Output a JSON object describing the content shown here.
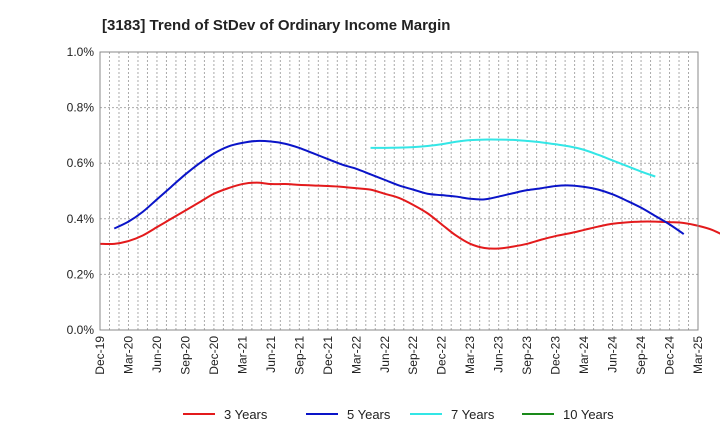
{
  "chart_data": {
    "type": "line",
    "title": "[3183]  Trend of StDev of Ordinary Income Margin",
    "xlabel": "",
    "ylabel": "",
    "ylim": [
      0,
      1.0
    ],
    "y_ticks": [
      "0.0%",
      "0.2%",
      "0.4%",
      "0.6%",
      "0.8%",
      "1.0%"
    ],
    "y_tick_values": [
      0,
      0.2,
      0.4,
      0.6,
      0.8,
      1.0
    ],
    "x_ticks": [
      "Dec-19",
      "Mar-20",
      "Jun-20",
      "Sep-20",
      "Dec-20",
      "Mar-21",
      "Jun-21",
      "Sep-21",
      "Dec-21",
      "Mar-22",
      "Jun-22",
      "Sep-22",
      "Dec-22",
      "Mar-23",
      "Jun-23",
      "Sep-23",
      "Dec-23",
      "Mar-24",
      "Jun-24",
      "Sep-24",
      "Dec-24",
      "Mar-25"
    ],
    "grid": true,
    "legend_position": "bottom",
    "colors": {
      "3 Years": "#e31a1c",
      "5 Years": "#0a14c8",
      "7 Years": "#33e6e6",
      "10 Years": "#1a8a1a"
    },
    "series": [
      {
        "name": "3 Years",
        "values": [
          [
            0,
            0.31
          ],
          [
            1,
            0.31
          ],
          [
            2,
            0.32
          ],
          [
            3,
            0.34
          ],
          [
            4,
            0.37
          ],
          [
            5,
            0.4
          ],
          [
            6,
            0.43
          ],
          [
            7,
            0.46
          ],
          [
            8,
            0.49
          ],
          [
            9,
            0.51
          ],
          [
            10,
            0.525
          ],
          [
            11,
            0.53
          ],
          [
            12,
            0.525
          ],
          [
            13,
            0.525
          ],
          [
            14,
            0.522
          ],
          [
            15,
            0.52
          ],
          [
            16,
            0.518
          ],
          [
            17,
            0.515
          ],
          [
            18,
            0.51
          ],
          [
            19,
            0.505
          ],
          [
            20,
            0.49
          ],
          [
            21,
            0.475
          ],
          [
            22,
            0.45
          ],
          [
            23,
            0.42
          ],
          [
            24,
            0.38
          ],
          [
            25,
            0.34
          ],
          [
            26,
            0.31
          ],
          [
            27,
            0.295
          ],
          [
            28,
            0.293
          ],
          [
            29,
            0.3
          ],
          [
            30,
            0.31
          ],
          [
            31,
            0.325
          ],
          [
            32,
            0.338
          ],
          [
            33,
            0.348
          ],
          [
            34,
            0.36
          ],
          [
            35,
            0.372
          ],
          [
            36,
            0.382
          ],
          [
            37,
            0.387
          ],
          [
            38,
            0.39
          ],
          [
            39,
            0.39
          ],
          [
            40,
            0.388
          ],
          [
            41,
            0.385
          ],
          [
            42,
            0.375
          ],
          [
            43,
            0.36
          ],
          [
            44,
            0.335
          ]
        ]
      },
      {
        "name": "5 Years",
        "values": [
          [
            1,
            0.365
          ],
          [
            2,
            0.39
          ],
          [
            3,
            0.425
          ],
          [
            4,
            0.47
          ],
          [
            5,
            0.515
          ],
          [
            6,
            0.56
          ],
          [
            7,
            0.6
          ],
          [
            8,
            0.635
          ],
          [
            9,
            0.66
          ],
          [
            10,
            0.673
          ],
          [
            11,
            0.68
          ],
          [
            12,
            0.678
          ],
          [
            13,
            0.67
          ],
          [
            14,
            0.655
          ],
          [
            15,
            0.635
          ],
          [
            16,
            0.615
          ],
          [
            17,
            0.595
          ],
          [
            18,
            0.58
          ],
          [
            19,
            0.56
          ],
          [
            20,
            0.54
          ],
          [
            21,
            0.52
          ],
          [
            22,
            0.505
          ],
          [
            23,
            0.49
          ],
          [
            24,
            0.485
          ],
          [
            25,
            0.48
          ],
          [
            26,
            0.472
          ],
          [
            27,
            0.47
          ],
          [
            28,
            0.48
          ],
          [
            29,
            0.492
          ],
          [
            30,
            0.503
          ],
          [
            31,
            0.51
          ],
          [
            32,
            0.518
          ],
          [
            33,
            0.52
          ],
          [
            34,
            0.515
          ],
          [
            35,
            0.505
          ],
          [
            36,
            0.488
          ],
          [
            37,
            0.465
          ],
          [
            38,
            0.44
          ],
          [
            39,
            0.41
          ],
          [
            40,
            0.38
          ],
          [
            41,
            0.345
          ]
        ]
      },
      {
        "name": "7 Years",
        "values": [
          [
            19,
            0.655
          ],
          [
            20,
            0.655
          ],
          [
            21,
            0.656
          ],
          [
            22,
            0.658
          ],
          [
            23,
            0.662
          ],
          [
            24,
            0.668
          ],
          [
            25,
            0.677
          ],
          [
            26,
            0.683
          ],
          [
            27,
            0.685
          ],
          [
            28,
            0.685
          ],
          [
            29,
            0.684
          ],
          [
            30,
            0.68
          ],
          [
            31,
            0.675
          ],
          [
            32,
            0.668
          ],
          [
            33,
            0.66
          ],
          [
            34,
            0.648
          ],
          [
            35,
            0.63
          ],
          [
            36,
            0.61
          ],
          [
            37,
            0.59
          ],
          [
            38,
            0.57
          ],
          [
            39,
            0.552
          ]
        ]
      },
      {
        "name": "10 Years",
        "values": []
      }
    ]
  }
}
